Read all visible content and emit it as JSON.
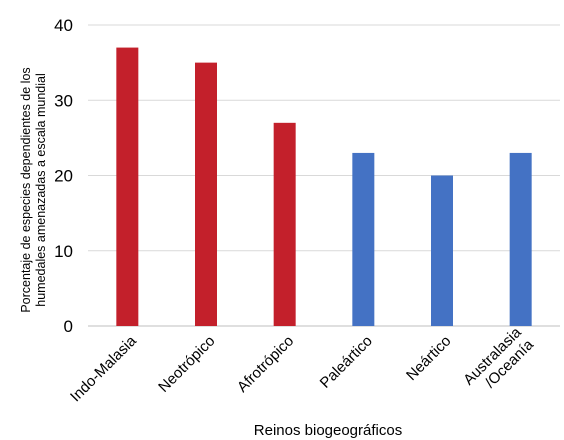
{
  "chart_data": {
    "type": "bar",
    "categories": [
      "Indo-Malasia",
      "Neotrópico",
      "Afrotrópico",
      "Paleártico",
      "Neártico",
      "Australasia\n/Oceanía"
    ],
    "values": [
      37,
      35,
      27,
      23,
      20,
      23
    ],
    "bar_colors": [
      "#c3202b",
      "#c3202b",
      "#c3202b",
      "#4472c4",
      "#4472c4",
      "#4472c4"
    ],
    "xlabel": "Reinos biogeográficos",
    "ylabel_lines": [
      "Porcentaje de especies dependientes de los",
      "humedales amenazadas a escala mundial"
    ],
    "ylim": [
      0,
      40
    ],
    "yticks": [
      0,
      10,
      20,
      30,
      40
    ],
    "grid": true,
    "gridline_color": "#d9d9d9"
  }
}
